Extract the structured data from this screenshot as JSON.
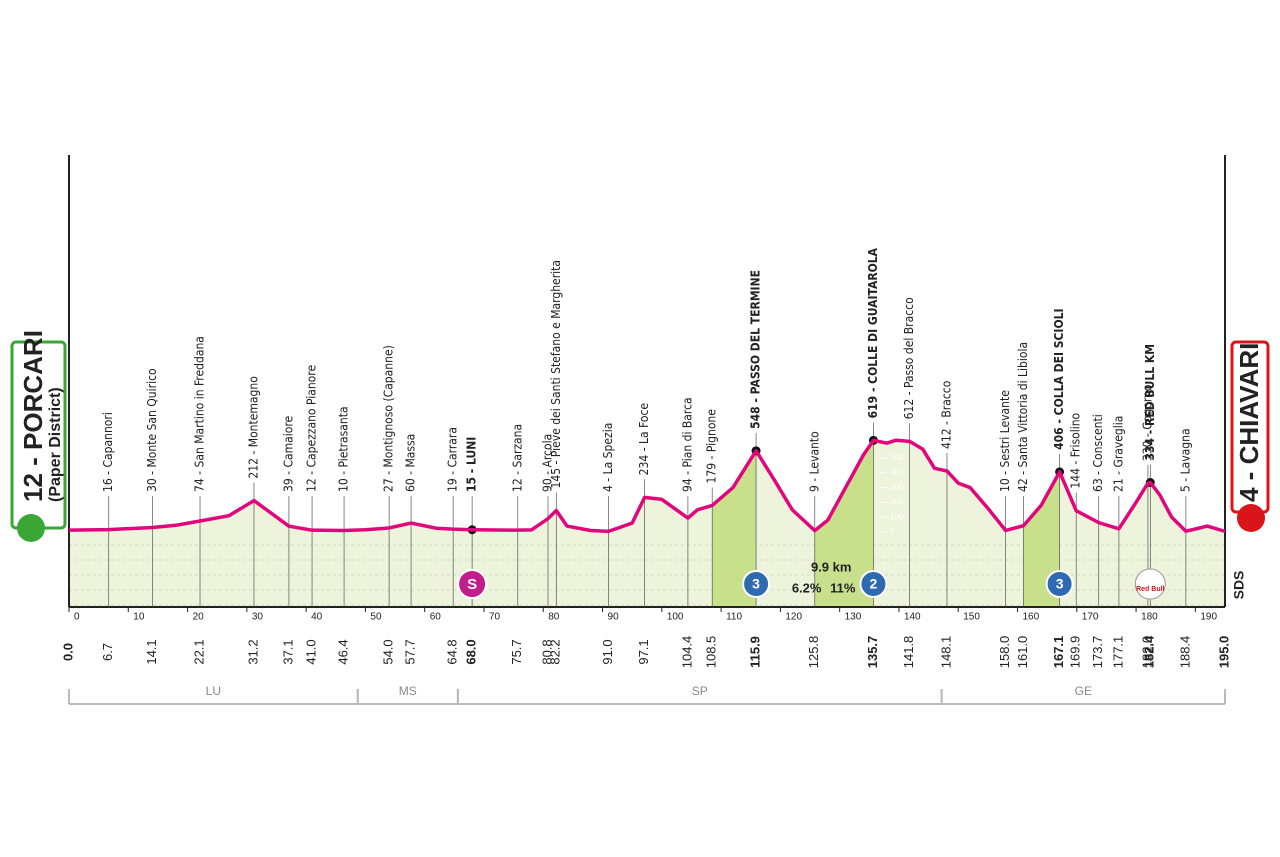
{
  "chart_data": {
    "type": "profile",
    "start": {
      "name": "12 - PORCARI",
      "subtitle": "(Paper District)"
    },
    "finish": {
      "name": "4 - CHIAVARI"
    },
    "line_color": "#e2067c",
    "fill_color": "#eef3dc",
    "climb_color": "#c8df8c",
    "xlim": [
      0,
      195
    ],
    "ylim": [
      -507,
      2547
    ],
    "xticks": [
      0,
      10,
      20,
      30,
      40,
      50,
      60,
      70,
      80,
      90,
      100,
      110,
      120,
      130,
      140,
      150,
      160,
      170,
      180,
      190
    ],
    "yticks": [
      0,
      100,
      200,
      300,
      400,
      500
    ],
    "x": [
      0,
      6.7,
      14.1,
      18,
      22.1,
      27,
      31.2,
      34,
      37.1,
      41,
      46.4,
      50,
      54,
      57.7,
      62,
      64.8,
      68,
      75.7,
      78,
      80.8,
      82.2,
      84,
      88,
      91,
      95,
      97.1,
      100,
      104.4,
      106,
      108.5,
      112,
      115.9,
      119,
      122,
      125.8,
      128,
      131,
      134,
      135.7,
      138,
      139.5,
      141.8,
      144,
      146,
      148.1,
      150,
      152,
      155,
      158,
      161,
      164,
      167.1,
      169.9,
      173.7,
      177.1,
      180,
      182,
      182.4,
      184,
      186,
      188.4,
      190,
      192,
      195
    ],
    "values": [
      12,
      16,
      30,
      45,
      74,
      110,
      212,
      130,
      39,
      12,
      10,
      15,
      27,
      60,
      25,
      19,
      15,
      12,
      14,
      90,
      145,
      40,
      10,
      4,
      60,
      234,
      220,
      94,
      150,
      179,
      300,
      548,
      350,
      150,
      9,
      80,
      300,
      520,
      619,
      600,
      620,
      612,
      560,
      430,
      412,
      330,
      300,
      160,
      10,
      42,
      180,
      406,
      144,
      63,
      21,
      200,
      330,
      334,
      250,
      100,
      5,
      20,
      40,
      4
    ],
    "waypoints": [
      {
        "km": {
          "value": 0,
          "label": "0.0"
        }
      },
      {
        "km": 6.7,
        "label": "16 - Capannori"
      },
      {
        "km": 14.1,
        "label": "30 - Monte San Quirico"
      },
      {
        "km": 22.1,
        "label": "74 - San Martino in Freddana"
      },
      {
        "km": 31.2,
        "label": "212 - Montemagno"
      },
      {
        "km": 37.1,
        "label": "39 - Camaiore"
      },
      {
        "km": {
          "value": 41,
          "label": "41.0"
        },
        "label": "12 - Capezzano Pianore"
      },
      {
        "km": 46.4,
        "label": "10 - Pietrasanta"
      },
      {
        "km": {
          "value": 54,
          "label": "54.0"
        },
        "label": "27 - Montignoso (Capanne)"
      },
      {
        "km": 57.7,
        "label": "60 - Massa"
      },
      {
        "km": 64.8,
        "label": "19 - Carrara"
      },
      {
        "km": {
          "value": 68,
          "label": "68.0"
        },
        "label": "15 - LUNI",
        "bold": true
      },
      {
        "km": 75.7,
        "label": "12 - Sarzana"
      },
      {
        "km": 80.8,
        "label": "90 - Arcola"
      },
      {
        "km": 82.2,
        "label": "145 - Pieve dei Santi Stefano e Margherita"
      },
      {
        "km": {
          "value": 91,
          "label": "91.0"
        },
        "label": "4 - La Spezia"
      },
      {
        "km": 97.1,
        "label": "234 - La Foce"
      },
      {
        "km": 104.4,
        "label": "94 - Pian di Barca"
      },
      {
        "km": 108.5,
        "label": "179 - Pignone"
      },
      {
        "km": 115.9,
        "label": "548 - PASSO DEL TERMINE",
        "bold": true
      },
      {
        "km": 125.8,
        "label": "9 - Levanto"
      },
      {
        "km": 135.7,
        "label": "619 - COLLE DI GUAITAROLA",
        "bold": true
      },
      {
        "km": 141.8,
        "label": "612 - Passo del Bracco"
      },
      {
        "km": 148.1,
        "label": "412 - Bracco"
      },
      {
        "km": {
          "value": 158,
          "label": "158.0"
        },
        "label": "10 - Sestri Levante"
      },
      {
        "km": {
          "value": 161,
          "label": "161.0"
        },
        "label": "42 - Santa Vittoria di Libiola"
      },
      {
        "km": 167.1,
        "label": "406 - COLLA DEI SCIOLI",
        "bold": true
      },
      {
        "km": 169.9,
        "label": "144 - Frisolino"
      },
      {
        "km": 173.7,
        "label": "63 - Conscenti"
      },
      {
        "km": 177.1,
        "label": "21 - Graveglia"
      },
      {
        "km": {
          "value": 182,
          "label": "182.0"
        },
        "label": "330 - Cogorno"
      },
      {
        "km": 182.4,
        "label": "334 - RED BULL KM",
        "bold": true
      },
      {
        "km": 188.4,
        "label": "5 - Lavagna"
      },
      {
        "km": {
          "value": 195,
          "label": "195.0"
        }
      }
    ],
    "climbs": [
      {
        "from": 108.5,
        "to": 115.9,
        "category": 3
      },
      {
        "from": 125.8,
        "to": 135.7,
        "category": 2,
        "length": {
          "value": 9.9,
          "label": "9.9 km"
        },
        "gradient": {
          "value": 6.2,
          "label": "6.2%"
        },
        "max_gradient": {
          "value": 11,
          "label": "11%"
        }
      },
      {
        "from": 161,
        "to": 167.1,
        "category": 3
      }
    ],
    "sprint": {
      "km": 68,
      "label": "S"
    },
    "red_bull": {
      "km": 182.4,
      "label": "Red Bull"
    },
    "provinces": [
      {
        "name": "LU",
        "from": 0,
        "to": 48.7
      },
      {
        "name": "MS",
        "from": 48.7,
        "to": 65.6
      },
      {
        "name": "SP",
        "from": 65.6,
        "to": 147.2
      },
      {
        "name": "GE",
        "from": 147.2,
        "to": 195
      }
    ],
    "logo": "SDS"
  }
}
